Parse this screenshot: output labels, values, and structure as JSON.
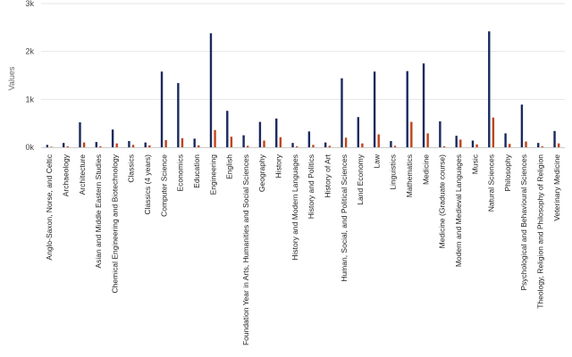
{
  "chart_data": {
    "type": "bar",
    "title": "",
    "xlabel": "",
    "ylabel": "Values",
    "ylim": [
      0,
      3000
    ],
    "yticks": [
      {
        "value": 0,
        "label": "0k"
      },
      {
        "value": 1000,
        "label": "1k"
      },
      {
        "value": 2000,
        "label": "2k"
      },
      {
        "value": 3000,
        "label": "3k"
      }
    ],
    "grid": true,
    "legend": "none",
    "categories": [
      "Anglo-Saxon, Norse, and Celtic",
      "Archaeology",
      "Architecture",
      "Asian and Middle Eastern Studies",
      "Chemical Engineering and Biotechnology",
      "Classics",
      "Classics (4 years)",
      "Computer Science",
      "Economics",
      "Education",
      "Engineering",
      "English",
      "Foundation Year in Arts, Humanities and Social Sciences",
      "Geography",
      "History",
      "History and Modern Languages",
      "History and Politics",
      "History of Art",
      "Human, Social, and Political Sciences",
      "Land Economy",
      "Law",
      "Linguistics",
      "Mathematics",
      "Medicine",
      "Medicine (Graduate course)",
      "Modern and Medieval Languages",
      "Music",
      "Natural Sciences",
      "Philosophy",
      "Psychological and Behavioural Sciences",
      "Theology, Religion and Philosophy of Religion",
      "Veterinary Medicine"
    ],
    "series": [
      {
        "color": "#1a2a5e",
        "values": [
          50,
          90,
          520,
          110,
          370,
          130,
          100,
          1580,
          1340,
          180,
          2380,
          760,
          250,
          530,
          600,
          90,
          330,
          100,
          1440,
          630,
          1580,
          130,
          1590,
          1750,
          540,
          240,
          140,
          2420,
          290,
          890,
          90,
          340
        ]
      },
      {
        "color": "#c0461b",
        "values": [
          10,
          20,
          100,
          20,
          80,
          50,
          40,
          150,
          190,
          40,
          360,
          220,
          30,
          140,
          210,
          20,
          50,
          30,
          200,
          80,
          270,
          30,
          530,
          290,
          20,
          160,
          60,
          620,
          70,
          120,
          20,
          80
        ]
      }
    ]
  }
}
